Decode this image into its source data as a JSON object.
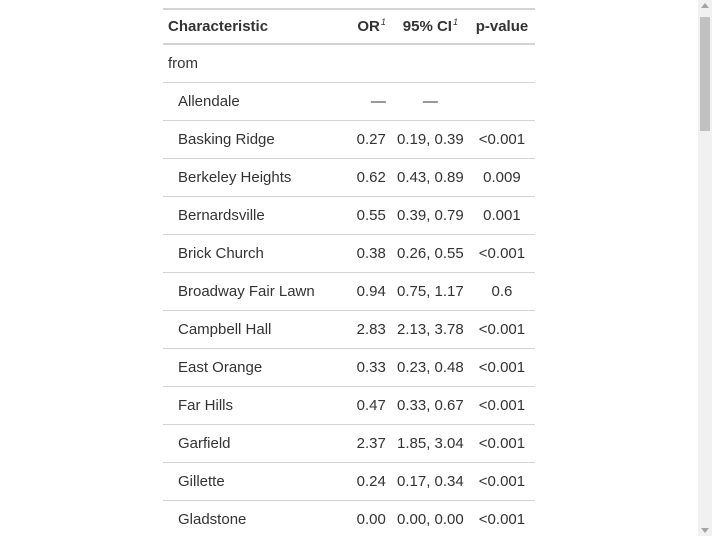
{
  "table": {
    "headers": {
      "characteristic": "Characteristic",
      "or": "OR",
      "or_footnote": "1",
      "ci": "95% CI",
      "ci_footnote": "1",
      "p": "p-value"
    },
    "rows": [
      {
        "label": "from",
        "or": "",
        "ci": "",
        "p": "",
        "indent": false
      },
      {
        "label": "Allendale",
        "or": "—",
        "ci": "—",
        "p": "",
        "indent": true
      },
      {
        "label": "Basking Ridge",
        "or": "0.27",
        "ci": "0.19, 0.39",
        "p": "<0.001",
        "indent": true
      },
      {
        "label": "Berkeley Heights",
        "or": "0.62",
        "ci": "0.43, 0.89",
        "p": "0.009",
        "indent": true
      },
      {
        "label": "Bernardsville",
        "or": "0.55",
        "ci": "0.39, 0.79",
        "p": "0.001",
        "indent": true
      },
      {
        "label": "Brick Church",
        "or": "0.38",
        "ci": "0.26, 0.55",
        "p": "<0.001",
        "indent": true
      },
      {
        "label": "Broadway Fair Lawn",
        "or": "0.94",
        "ci": "0.75, 1.17",
        "p": "0.6",
        "indent": true
      },
      {
        "label": "Campbell Hall",
        "or": "2.83",
        "ci": "2.13, 3.78",
        "p": "<0.001",
        "indent": true
      },
      {
        "label": "East Orange",
        "or": "0.33",
        "ci": "0.23, 0.48",
        "p": "<0.001",
        "indent": true
      },
      {
        "label": "Far Hills",
        "or": "0.47",
        "ci": "0.33, 0.67",
        "p": "<0.001",
        "indent": true
      },
      {
        "label": "Garfield",
        "or": "2.37",
        "ci": "1.85, 3.04",
        "p": "<0.001",
        "indent": true
      },
      {
        "label": "Gillette",
        "or": "0.24",
        "ci": "0.17, 0.34",
        "p": "<0.001",
        "indent": true
      },
      {
        "label": "Gladstone",
        "or": "0.00",
        "ci": "0.00, 0.00",
        "p": "<0.001",
        "indent": true
      }
    ]
  },
  "scrollbar": {
    "up_icon": "chevron-up-icon",
    "down_icon": "chevron-down-icon",
    "position": 0.0
  }
}
